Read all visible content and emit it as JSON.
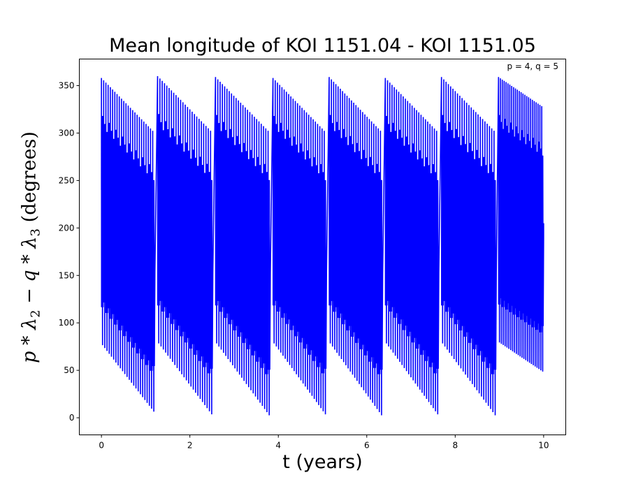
{
  "chart_data": {
    "type": "line",
    "title": "Mean longitude of KOI 1151.04 - KOI 1151.05",
    "xlabel": "t (years)",
    "ylabel_display": [
      "p",
      " * ",
      "λ",
      "2",
      " − ",
      "q",
      " * ",
      "λ",
      "3",
      " (degrees)"
    ],
    "annotation": "p = 4, q = 5",
    "xlim": [
      -0.5,
      10.5
    ],
    "ylim": [
      -18,
      378
    ],
    "xticks": [
      0,
      2,
      4,
      6,
      8,
      10
    ],
    "yticks": [
      0,
      50,
      100,
      150,
      200,
      250,
      300,
      350
    ],
    "grid": false,
    "series": [
      {
        "color": "#0000ff",
        "segments": [
          {
            "x_start": 0.0,
            "x_end": 1.21,
            "top_start": 358,
            "top_end": 300,
            "bottom_start": 78,
            "bottom_end": 5
          },
          {
            "x_start": 1.27,
            "x_end": 2.52,
            "top_start": 360,
            "top_end": 300,
            "bottom_start": 80,
            "bottom_end": 2
          },
          {
            "x_start": 2.58,
            "x_end": 3.82,
            "top_start": 359,
            "top_end": 300,
            "bottom_start": 80,
            "bottom_end": 1
          },
          {
            "x_start": 3.88,
            "x_end": 5.09,
            "top_start": 358,
            "top_end": 300,
            "bottom_start": 80,
            "bottom_end": 2
          },
          {
            "x_start": 5.15,
            "x_end": 6.36,
            "top_start": 359,
            "top_end": 300,
            "bottom_start": 80,
            "bottom_end": 1
          },
          {
            "x_start": 6.42,
            "x_end": 7.63,
            "top_start": 358,
            "top_end": 300,
            "bottom_start": 80,
            "bottom_end": 2
          },
          {
            "x_start": 7.69,
            "x_end": 8.93,
            "top_start": 359,
            "top_end": 300,
            "bottom_start": 80,
            "bottom_end": 1
          },
          {
            "x_start": 8.98,
            "x_end": 10.0,
            "top_start": 359,
            "top_end": 327,
            "bottom_start": 80,
            "bottom_end": 48
          }
        ],
        "oscillations_per_segment": 24
      }
    ]
  }
}
